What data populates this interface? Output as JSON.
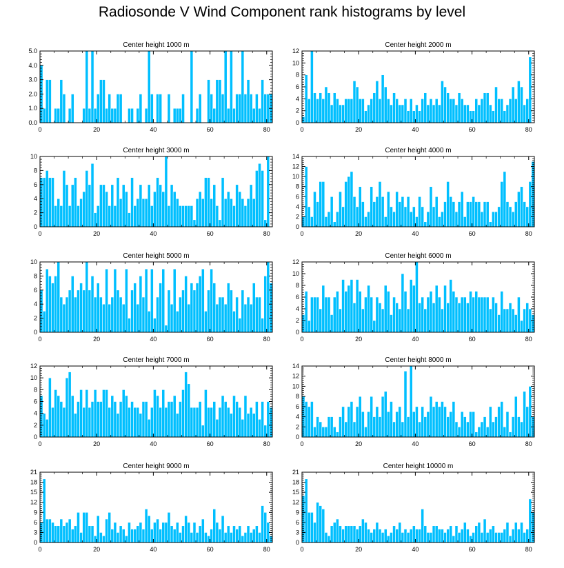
{
  "title": "Radiosonde V Wind Component rank histograms by level",
  "colors": {
    "bar": "#00BFFF",
    "bar_edge": "#FFFFFF",
    "axis": "#000000",
    "background": "#FFFFFF"
  },
  "chart_data": [
    {
      "type": "bar",
      "title": "Center height 1000 m",
      "xlabel": "",
      "ylabel": "",
      "xlim": [
        0,
        82
      ],
      "ylim": [
        0,
        5
      ],
      "xticks": [
        0,
        20,
        40,
        60,
        80
      ],
      "yticks": [
        0,
        1,
        2,
        3,
        4,
        5
      ],
      "ytick_labels": [
        "0.0",
        "1.0",
        "2.0",
        "3.0",
        "4.0",
        "5.0"
      ],
      "values": [
        4,
        1,
        3,
        3,
        0,
        1,
        1,
        3,
        2,
        0,
        1,
        2,
        0,
        0,
        0,
        1,
        5,
        1,
        5,
        1,
        2,
        3,
        3,
        1,
        2,
        1,
        1,
        2,
        2,
        0,
        0,
        1,
        1,
        0,
        1,
        2,
        0,
        1,
        5,
        2,
        0,
        2,
        2,
        0,
        0,
        2,
        0,
        1,
        1,
        1,
        2,
        0,
        0,
        5,
        0,
        1,
        2,
        0,
        0,
        3,
        2,
        1,
        3,
        3,
        2,
        5,
        1,
        5,
        1,
        2,
        2,
        5,
        2,
        3,
        2,
        1,
        2,
        1,
        3,
        2,
        2,
        2
      ]
    },
    {
      "type": "bar",
      "title": "Center height 2000 m",
      "xlabel": "",
      "ylabel": "",
      "xlim": [
        0,
        82
      ],
      "ylim": [
        0,
        12
      ],
      "xticks": [
        0,
        20,
        40,
        60,
        80
      ],
      "yticks": [
        0,
        2,
        4,
        6,
        8,
        10,
        12
      ],
      "ytick_labels": [
        "0",
        "2",
        "4",
        "6",
        "8",
        "10",
        "12"
      ],
      "values": [
        1,
        8,
        4,
        12,
        5,
        4,
        5,
        4,
        6,
        5,
        3,
        5,
        4,
        3,
        3,
        4,
        4,
        4,
        7,
        6,
        4,
        4,
        2,
        3,
        4,
        5,
        7,
        4,
        8,
        6,
        4,
        3,
        5,
        4,
        3,
        3,
        4,
        2,
        4,
        2,
        3,
        2,
        4,
        5,
        3,
        4,
        3,
        4,
        3,
        7,
        6,
        5,
        4,
        4,
        3,
        5,
        4,
        3,
        3,
        2,
        2,
        4,
        3,
        4,
        5,
        5,
        3,
        2,
        6,
        4,
        4,
        2,
        3,
        4,
        6,
        4,
        7,
        6,
        3,
        4,
        11
      ]
    },
    {
      "type": "bar",
      "title": "Center height 3000 m",
      "xlabel": "",
      "ylabel": "",
      "xlim": [
        0,
        82
      ],
      "ylim": [
        0,
        10
      ],
      "xticks": [
        0,
        20,
        40,
        60,
        80
      ],
      "yticks": [
        0,
        2,
        4,
        6,
        8,
        10
      ],
      "ytick_labels": [
        "0",
        "2",
        "4",
        "6",
        "8",
        "10"
      ],
      "values": [
        7,
        7,
        8,
        7,
        7,
        3,
        4,
        3,
        8,
        6,
        3,
        6,
        7,
        3,
        4,
        5,
        8,
        6,
        9,
        2,
        3,
        6,
        6,
        5,
        3,
        6,
        3,
        7,
        4,
        6,
        5,
        2,
        7,
        3,
        4,
        6,
        4,
        4,
        6,
        3,
        5,
        7,
        6,
        5,
        10,
        3,
        6,
        5,
        4,
        3,
        3,
        3,
        3,
        3,
        1,
        4,
        5,
        4,
        7,
        7,
        4,
        6,
        3,
        1,
        7,
        4,
        5,
        4,
        3,
        6,
        5,
        4,
        3,
        4,
        6,
        4,
        8,
        9,
        8,
        1,
        10
      ]
    },
    {
      "type": "bar",
      "title": "Center height 4000 m",
      "xlabel": "",
      "ylabel": "",
      "xlim": [
        0,
        82
      ],
      "ylim": [
        0,
        14
      ],
      "xticks": [
        0,
        20,
        40,
        60,
        80
      ],
      "yticks": [
        0,
        2,
        4,
        6,
        8,
        10,
        12,
        14
      ],
      "ytick_labels": [
        "0",
        "2",
        "4",
        "6",
        "8",
        "10",
        "12",
        "14"
      ],
      "values": [
        2,
        12,
        4,
        2,
        7,
        5,
        9,
        9,
        2,
        3,
        6,
        1,
        3,
        7,
        4,
        9,
        10,
        11,
        6,
        4,
        8,
        5,
        2,
        3,
        8,
        5,
        6,
        9,
        6,
        2,
        7,
        4,
        3,
        7,
        5,
        6,
        4,
        6,
        3,
        4,
        2,
        6,
        4,
        1,
        3,
        8,
        4,
        6,
        2,
        3,
        5,
        9,
        6,
        5,
        3,
        5,
        7,
        2,
        5,
        5,
        6,
        5,
        5,
        3,
        5,
        5,
        1,
        3,
        3,
        4,
        9,
        11,
        5,
        4,
        3,
        5,
        7,
        8,
        5,
        4,
        9,
        13
      ]
    },
    {
      "type": "bar",
      "title": "Center height 5000 m",
      "xlabel": "",
      "ylabel": "",
      "xlim": [
        0,
        82
      ],
      "ylim": [
        0,
        10
      ],
      "xticks": [
        0,
        20,
        40,
        60,
        80
      ],
      "yticks": [
        0,
        2,
        4,
        6,
        8,
        10
      ],
      "ytick_labels": [
        "0",
        "2",
        "4",
        "6",
        "8",
        "10"
      ],
      "values": [
        6,
        3,
        9,
        8,
        7,
        8,
        10,
        5,
        4,
        5,
        6,
        8,
        5,
        6,
        7,
        6,
        10,
        6,
        8,
        5,
        7,
        5,
        4,
        9,
        4,
        5,
        9,
        6,
        5,
        4,
        9,
        2,
        6,
        7,
        4,
        8,
        5,
        9,
        3,
        9,
        2,
        5,
        7,
        9,
        1,
        6,
        4,
        9,
        3,
        5,
        6,
        8,
        4,
        7,
        6,
        7,
        8,
        9,
        3,
        6,
        9,
        7,
        4,
        5,
        5,
        4,
        7,
        6,
        3,
        5,
        2,
        6,
        4,
        5,
        4,
        7,
        5,
        5,
        2,
        8,
        10,
        7
      ]
    },
    {
      "type": "bar",
      "title": "Center height 6000 m",
      "xlabel": "",
      "ylabel": "",
      "xlim": [
        0,
        82
      ],
      "ylim": [
        0,
        12
      ],
      "xticks": [
        0,
        20,
        40,
        60,
        80
      ],
      "yticks": [
        0,
        2,
        4,
        6,
        8,
        10,
        12
      ],
      "ytick_labels": [
        "0",
        "2",
        "4",
        "6",
        "8",
        "10",
        "12"
      ],
      "values": [
        3,
        7,
        2,
        6,
        6,
        6,
        4,
        8,
        6,
        6,
        3,
        6,
        7,
        4,
        9,
        7,
        8,
        9,
        5,
        9,
        7,
        4,
        6,
        8,
        6,
        2,
        6,
        5,
        4,
        8,
        7,
        3,
        6,
        5,
        4,
        10,
        7,
        4,
        9,
        8,
        12,
        5,
        6,
        4,
        6,
        7,
        5,
        8,
        6,
        4,
        8,
        5,
        9,
        7,
        6,
        5,
        6,
        6,
        5,
        7,
        6,
        7,
        6,
        6,
        6,
        6,
        4,
        6,
        5,
        3,
        7,
        4,
        4,
        5,
        4,
        3,
        6,
        2,
        4,
        5,
        4,
        3
      ]
    },
    {
      "type": "bar",
      "title": "Center height 7000 m",
      "xlabel": "",
      "ylabel": "",
      "xlim": [
        0,
        82
      ],
      "ylim": [
        0,
        12
      ],
      "xticks": [
        0,
        20,
        40,
        60,
        80
      ],
      "yticks": [
        0,
        2,
        4,
        6,
        8,
        10,
        12
      ],
      "ytick_labels": [
        "0",
        "2",
        "4",
        "6",
        "8",
        "10",
        "12"
      ],
      "values": [
        7,
        4,
        3,
        10,
        5,
        8,
        7,
        6,
        5,
        10,
        11,
        7,
        4,
        6,
        8,
        5,
        8,
        5,
        6,
        8,
        6,
        6,
        8,
        8,
        5,
        7,
        6,
        4,
        6,
        8,
        7,
        5,
        6,
        5,
        5,
        4,
        6,
        6,
        3,
        5,
        8,
        7,
        5,
        8,
        5,
        6,
        6,
        7,
        4,
        6,
        8,
        11,
        9,
        5,
        5,
        5,
        6,
        2,
        8,
        5,
        5,
        6,
        3,
        5,
        7,
        6,
        5,
        4,
        7,
        6,
        5,
        3,
        7,
        4,
        5,
        4,
        6,
        3,
        6,
        2,
        6,
        5
      ]
    },
    {
      "type": "bar",
      "title": "Center height 8000 m",
      "xlabel": "",
      "ylabel": "",
      "xlim": [
        0,
        82
      ],
      "ylim": [
        0,
        14
      ],
      "xticks": [
        0,
        20,
        40,
        60,
        80
      ],
      "yticks": [
        0,
        2,
        4,
        6,
        8,
        10,
        12,
        14
      ],
      "ytick_labels": [
        "0",
        "2",
        "4",
        "6",
        "8",
        "10",
        "12",
        "14"
      ],
      "values": [
        8,
        7,
        6,
        7,
        2,
        4,
        3,
        2,
        2,
        4,
        4,
        2,
        1,
        4,
        6,
        3,
        6,
        7,
        3,
        6,
        8,
        5,
        2,
        5,
        8,
        4,
        6,
        4,
        8,
        9,
        5,
        7,
        3,
        5,
        6,
        3,
        13,
        4,
        14,
        5,
        6,
        3,
        6,
        4,
        5,
        8,
        6,
        7,
        6,
        7,
        6,
        4,
        5,
        7,
        3,
        2,
        5,
        4,
        3,
        5,
        5,
        1,
        2,
        3,
        4,
        2,
        6,
        3,
        4,
        6,
        7,
        2,
        5,
        1,
        4,
        8,
        4,
        3,
        9,
        6,
        10,
        4
      ]
    },
    {
      "type": "bar",
      "title": "Center height 9000 m",
      "xlabel": "",
      "ylabel": "",
      "xlim": [
        0,
        82
      ],
      "ylim": [
        0,
        21
      ],
      "xticks": [
        0,
        20,
        40,
        60,
        80
      ],
      "yticks": [
        0,
        3,
        6,
        9,
        12,
        15,
        18,
        21
      ],
      "ytick_labels": [
        "0",
        "3",
        "6",
        "9",
        "12",
        "15",
        "18",
        "21"
      ],
      "values": [
        6,
        19,
        7,
        7,
        6,
        5,
        5,
        7,
        5,
        6,
        7,
        4,
        5,
        9,
        3,
        9,
        9,
        5,
        5,
        2,
        8,
        3,
        2,
        7,
        9,
        4,
        6,
        3,
        5,
        4,
        2,
        6,
        4,
        4,
        5,
        6,
        4,
        10,
        8,
        4,
        6,
        7,
        4,
        6,
        6,
        9,
        5,
        4,
        6,
        3,
        5,
        8,
        6,
        3,
        6,
        3,
        5,
        7,
        3,
        2,
        4,
        10,
        6,
        4,
        8,
        3,
        5,
        3,
        5,
        4,
        5,
        2,
        3,
        5,
        3,
        4,
        5,
        3,
        11,
        9,
        6,
        2
      ]
    },
    {
      "type": "bar",
      "title": "Center height 10000 m",
      "xlabel": "",
      "ylabel": "",
      "xlim": [
        0,
        82
      ],
      "ylim": [
        0,
        21
      ],
      "xticks": [
        0,
        20,
        40,
        60,
        80
      ],
      "yticks": [
        0,
        3,
        6,
        9,
        12,
        15,
        18,
        21
      ],
      "ytick_labels": [
        "0",
        "3",
        "6",
        "9",
        "12",
        "15",
        "18",
        "21"
      ],
      "values": [
        14,
        19,
        9,
        9,
        6,
        12,
        11,
        10,
        3,
        2,
        5,
        6,
        7,
        5,
        4,
        5,
        5,
        5,
        5,
        4,
        5,
        7,
        6,
        4,
        3,
        4,
        6,
        4,
        3,
        4,
        2,
        3,
        5,
        4,
        6,
        3,
        4,
        3,
        4,
        5,
        4,
        4,
        10,
        5,
        3,
        3,
        5,
        5,
        4,
        4,
        3,
        4,
        5,
        2,
        5,
        3,
        4,
        6,
        4,
        2,
        3,
        5,
        6,
        3,
        7,
        3,
        4,
        5,
        3,
        3,
        3,
        4,
        6,
        2,
        4,
        6,
        4,
        6,
        3,
        4,
        13,
        9
      ]
    }
  ]
}
